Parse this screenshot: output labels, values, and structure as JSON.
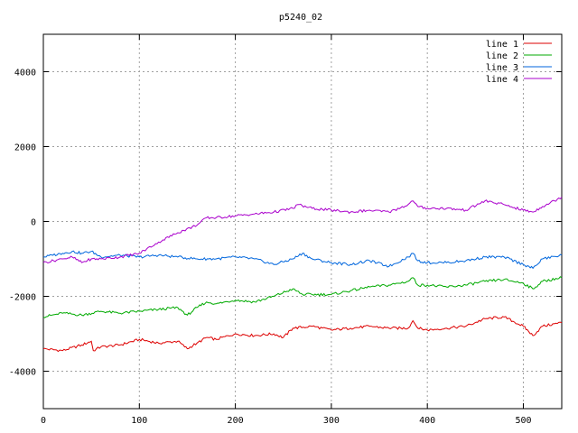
{
  "chart_data": {
    "type": "line",
    "title": "p5240_02",
    "xlabel": "",
    "ylabel": "",
    "xlim": [
      0,
      540
    ],
    "ylim": [
      -5000,
      5000
    ],
    "x_ticks": [
      0,
      100,
      200,
      300,
      400,
      500
    ],
    "y_ticks": [
      -4000,
      -2000,
      0,
      2000,
      4000
    ],
    "grid": true,
    "legend_position": "top-right",
    "series": [
      {
        "name": "line 1",
        "color": "#dd0000",
        "x": [
          0,
          20,
          40,
          50,
          52,
          60,
          80,
          100,
          120,
          140,
          150,
          160,
          170,
          180,
          200,
          220,
          240,
          250,
          260,
          280,
          300,
          320,
          340,
          360,
          380,
          385,
          390,
          400,
          420,
          440,
          460,
          480,
          500,
          510,
          520,
          540
        ],
        "y": [
          -3400,
          -3450,
          -3300,
          -3200,
          -3450,
          -3350,
          -3300,
          -3150,
          -3250,
          -3200,
          -3400,
          -3250,
          -3100,
          -3150,
          -3000,
          -3050,
          -3000,
          -3100,
          -2850,
          -2800,
          -2900,
          -2850,
          -2800,
          -2850,
          -2850,
          -2650,
          -2850,
          -2900,
          -2850,
          -2800,
          -2600,
          -2550,
          -2800,
          -3050,
          -2800,
          -2700
        ]
      },
      {
        "name": "line 2",
        "color": "#00aa00",
        "x": [
          0,
          20,
          40,
          60,
          80,
          100,
          120,
          140,
          150,
          160,
          170,
          180,
          200,
          220,
          240,
          260,
          270,
          280,
          300,
          320,
          340,
          360,
          380,
          385,
          390,
          400,
          420,
          440,
          460,
          480,
          500,
          510,
          520,
          540
        ],
        "y": [
          -2550,
          -2450,
          -2500,
          -2400,
          -2450,
          -2400,
          -2350,
          -2300,
          -2500,
          -2300,
          -2150,
          -2200,
          -2100,
          -2150,
          -2000,
          -1800,
          -1950,
          -1950,
          -1950,
          -1850,
          -1750,
          -1700,
          -1600,
          -1500,
          -1700,
          -1700,
          -1750,
          -1700,
          -1600,
          -1550,
          -1650,
          -1800,
          -1600,
          -1500
        ]
      },
      {
        "name": "line 3",
        "color": "#0066dd",
        "x": [
          0,
          10,
          20,
          30,
          40,
          50,
          60,
          80,
          100,
          120,
          140,
          160,
          180,
          200,
          220,
          240,
          260,
          270,
          280,
          300,
          320,
          340,
          360,
          380,
          385,
          390,
          400,
          420,
          440,
          460,
          480,
          500,
          510,
          520,
          540
        ],
        "y": [
          -950,
          -900,
          -850,
          -800,
          -850,
          -800,
          -950,
          -900,
          -950,
          -900,
          -950,
          -1000,
          -1000,
          -950,
          -1000,
          -1150,
          -1000,
          -850,
          -1000,
          -1100,
          -1150,
          -1050,
          -1200,
          -950,
          -850,
          -1050,
          -1100,
          -1100,
          -1050,
          -950,
          -950,
          -1150,
          -1250,
          -1000,
          -900
        ]
      },
      {
        "name": "line 4",
        "color": "#aa00cc",
        "x": [
          0,
          20,
          30,
          40,
          50,
          60,
          80,
          100,
          120,
          140,
          160,
          170,
          180,
          200,
          220,
          240,
          260,
          265,
          280,
          300,
          320,
          340,
          360,
          380,
          385,
          390,
          400,
          420,
          440,
          460,
          480,
          500,
          510,
          520,
          540
        ],
        "y": [
          -1100,
          -1000,
          -950,
          -1100,
          -1000,
          -1000,
          -950,
          -850,
          -550,
          -300,
          -100,
          100,
          100,
          150,
          200,
          250,
          350,
          450,
          350,
          300,
          250,
          300,
          250,
          450,
          550,
          400,
          350,
          350,
          300,
          550,
          450,
          300,
          250,
          400,
          650
        ]
      }
    ]
  }
}
